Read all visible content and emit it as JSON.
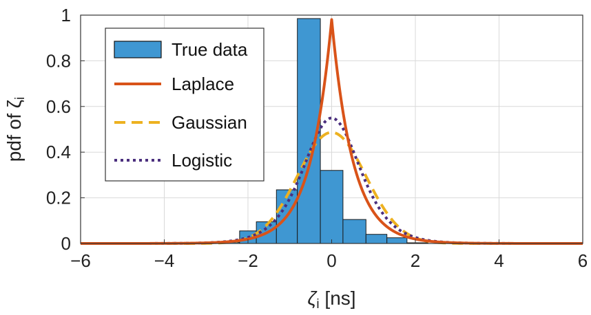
{
  "chart_data": {
    "type": "bar",
    "xlabel": "ζ",
    "xlabel_sub": "i",
    "xlabel_unit": " [ns]",
    "ylabel": "pdf of ζ",
    "ylabel_sub": "i",
    "xlim": [
      -6,
      6
    ],
    "ylim": [
      0,
      1
    ],
    "xticks": [
      -6,
      -4,
      -2,
      0,
      2,
      4,
      6
    ],
    "xtick_labels": [
      "−6",
      "−4",
      "−2",
      "0",
      "2",
      "4",
      "6"
    ],
    "yticks": [
      0,
      0.2,
      0.4,
      0.6,
      0.8,
      1
    ],
    "ytick_labels": [
      "0",
      "0.2",
      "0.4",
      "0.6",
      "0.8",
      "1"
    ],
    "grid": true,
    "legend_position": "top-left",
    "histogram": {
      "name": "True data",
      "color": "#3f97d2",
      "bin_edges": [
        -3.0,
        -2.2,
        -1.8,
        -1.32,
        -0.82,
        -0.27,
        0.27,
        0.82,
        1.32,
        1.8,
        2.3
      ],
      "values": [
        0.005,
        0.055,
        0.095,
        0.235,
        0.985,
        0.32,
        0.105,
        0.04,
        0.025,
        0.003
      ]
    },
    "series": [
      {
        "name": "Laplace",
        "type": "line",
        "style": "solid",
        "color": "#d95319",
        "distribution": "laplace",
        "mu": 0,
        "b": 0.51
      },
      {
        "name": "Gaussian",
        "type": "line",
        "style": "dashed",
        "color": "#edb120",
        "distribution": "gaussian",
        "mu": 0,
        "sigma": 0.82
      },
      {
        "name": "Logistic",
        "type": "line",
        "style": "dotted",
        "color": "#4b2f7e",
        "distribution": "logistic",
        "mu": 0,
        "s": 0.455
      }
    ]
  }
}
